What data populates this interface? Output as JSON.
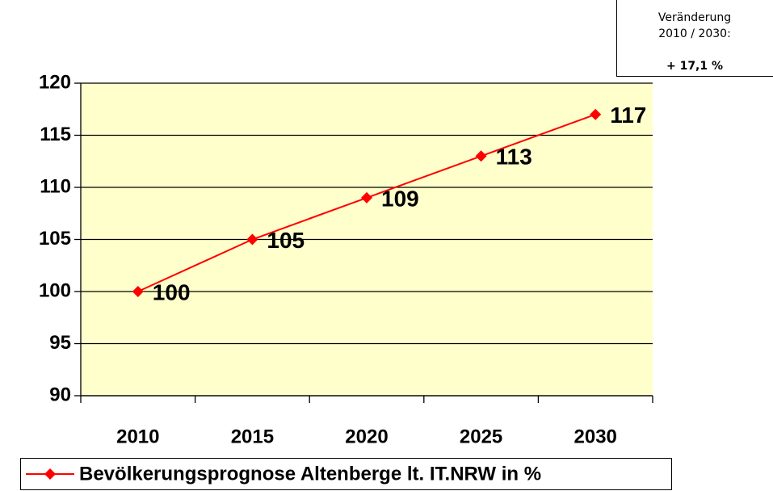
{
  "chart_data": {
    "type": "line",
    "categories": [
      "2010",
      "2015",
      "2020",
      "2025",
      "2030"
    ],
    "series": [
      {
        "name": "Bevölkerungsprognose Altenberge lt. IT.NRW in %",
        "color": "#ff0000",
        "values": [
          100,
          105,
          109,
          113,
          117
        ]
      }
    ],
    "ylim": [
      90,
      120
    ],
    "yticks": [
      90,
      95,
      100,
      105,
      110,
      115,
      120
    ],
    "grid": true,
    "plot_background": "#ffffcc",
    "legend": "bottom",
    "annotation": [
      "Veränderung",
      "2010 / 2030:",
      "+ 17,1 %"
    ]
  }
}
